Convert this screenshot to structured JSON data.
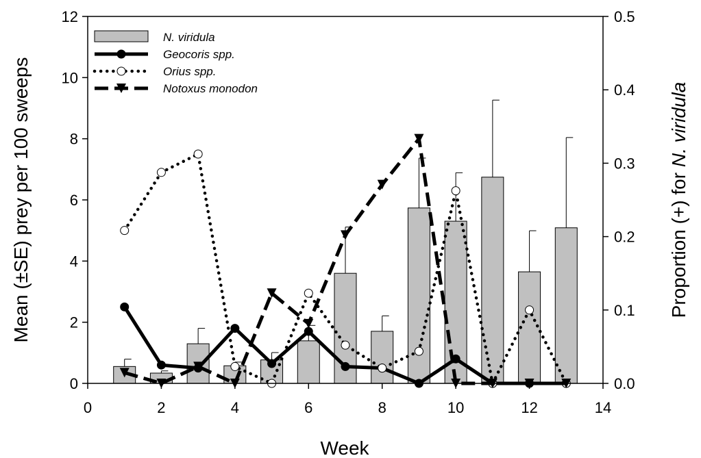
{
  "chart_data": {
    "type": "bar",
    "xlabel": "Week",
    "ylabel": "Mean (±SE) prey per 100 sweeps",
    "y2label_prefix": "Proportion (+) for ",
    "y2label_italic": "N. viridula",
    "xlim": [
      0,
      14
    ],
    "ylim": [
      0,
      12
    ],
    "y2lim": [
      0,
      0.5
    ],
    "xticks": [
      "0",
      "2",
      "4",
      "6",
      "8",
      "10",
      "12",
      "14"
    ],
    "yticks": [
      "0",
      "2",
      "4",
      "6",
      "8",
      "10",
      "12"
    ],
    "y2ticks": [
      "0.0",
      "0.1",
      "0.2",
      "0.3",
      "0.4",
      "0.5"
    ],
    "legend_position": "top-left",
    "grid": false,
    "bars": {
      "name": "N. viridula",
      "axis": "right",
      "color": "#c0c0c0",
      "x": [
        1,
        2,
        3,
        4,
        5,
        6,
        7,
        8,
        9,
        10,
        11,
        12,
        13
      ],
      "values": [
        0.023,
        0.014,
        0.054,
        0.024,
        0.032,
        0.058,
        0.15,
        0.071,
        0.239,
        0.221,
        0.281,
        0.152,
        0.212
      ],
      "err": [
        0.01,
        0.003,
        0.021,
        0.005,
        0.01,
        0.021,
        0.063,
        0.021,
        0.068,
        0.066,
        0.105,
        0.056,
        0.123
      ]
    },
    "series": [
      {
        "name": "Geocoris spp.",
        "style": "solid",
        "marker": "circle-filled",
        "axis": "left",
        "x": [
          1,
          2,
          3,
          4,
          5,
          6,
          7,
          8,
          9,
          10,
          11,
          12,
          13
        ],
        "y": [
          2.5,
          0.6,
          0.5,
          1.8,
          0.65,
          1.7,
          0.55,
          0.5,
          0.0,
          0.8,
          0.0,
          0.0,
          0.0
        ]
      },
      {
        "name": "Orius spp.",
        "style": "dotted",
        "marker": "circle-open",
        "axis": "left",
        "x": [
          1,
          2,
          3,
          4,
          5,
          6,
          7,
          8,
          9,
          10,
          11,
          12,
          13
        ],
        "y": [
          5.0,
          6.9,
          7.5,
          0.55,
          0.0,
          2.95,
          1.25,
          0.5,
          1.05,
          6.3,
          0.0,
          2.4,
          0.0
        ]
      },
      {
        "name": "Notoxus monodon",
        "style": "dashed",
        "marker": "triangle-down",
        "axis": "left",
        "x": [
          1,
          2,
          3,
          4,
          5,
          6,
          7,
          8,
          9,
          10,
          11,
          12,
          13
        ],
        "y": [
          0.35,
          0.0,
          0.55,
          0.0,
          2.95,
          1.95,
          4.85,
          6.5,
          8.0,
          0.0,
          0.0,
          0.0,
          0.0
        ]
      }
    ]
  }
}
